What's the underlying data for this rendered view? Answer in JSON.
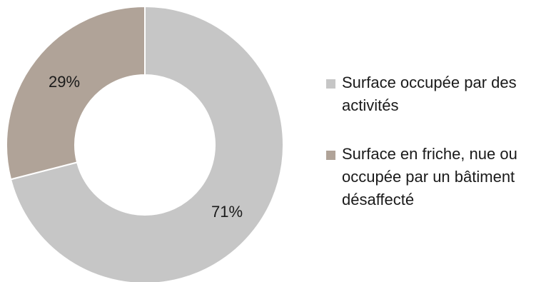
{
  "chart_data": {
    "type": "pie",
    "variant": "donut",
    "title": "",
    "categories": [
      "Surface occupée par des activités",
      "Surface en friche, nue ou occupée par un bâtiment désaffecté"
    ],
    "values": [
      71,
      29
    ],
    "labels": [
      "71%",
      "29%"
    ],
    "colors": [
      "#c6c6c6",
      "#b0a398"
    ],
    "start_at": "top (12 o'clock), clockwise",
    "legend_position": "right"
  },
  "legend": {
    "items": [
      {
        "label": "Surface occupée par des activités",
        "color": "#c6c6c6"
      },
      {
        "label": "Surface en friche, nue ou occupée par un bâtiment désaffecté",
        "color": "#b0a398"
      }
    ]
  }
}
